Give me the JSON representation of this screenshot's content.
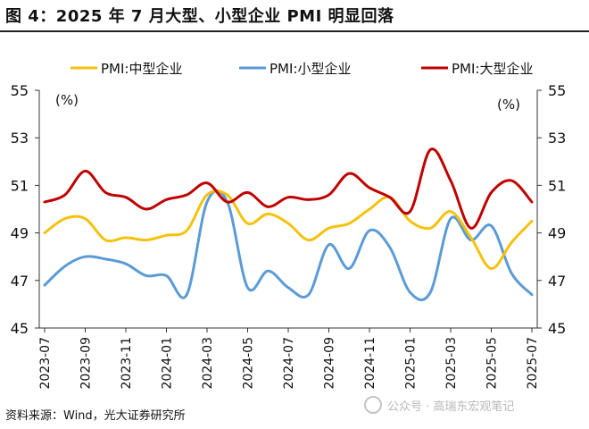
{
  "title": "图 4：2025 年 7 月大型、小型企业 PMI 明显回落",
  "source": "资料来源：Wind，光大证券研究所",
  "watermark": "公众号 · 高瑞东宏观笔记",
  "chart_data": {
    "type": "line",
    "title": "",
    "xlabel": "",
    "ylabel_left": "(%)",
    "ylabel_right": "(%)",
    "ylim": [
      45,
      55
    ],
    "yticks": [
      45,
      47,
      49,
      51,
      53,
      55
    ],
    "x": [
      "2023-07",
      "2023-08",
      "2023-09",
      "2023-10",
      "2023-11",
      "2023-12",
      "2024-01",
      "2024-02",
      "2024-03",
      "2024-04",
      "2024-05",
      "2024-06",
      "2024-07",
      "2024-08",
      "2024-09",
      "2024-10",
      "2024-11",
      "2024-12",
      "2025-01",
      "2025-02",
      "2025-03",
      "2025-04",
      "2025-05",
      "2025-06",
      "2025-07"
    ],
    "xtick_labels": [
      "2023-07",
      "2023-09",
      "2023-11",
      "2024-01",
      "2024-03",
      "2024-05",
      "2024-07",
      "2024-09",
      "2024-11",
      "2025-01",
      "2025-03",
      "2025-05",
      "2025-07"
    ],
    "legend_position": "top",
    "grid": false,
    "series": [
      {
        "name": "PMI:中型企业",
        "color": "#f4c20d",
        "values": [
          49.0,
          49.6,
          49.6,
          48.7,
          48.8,
          48.7,
          48.9,
          49.1,
          50.6,
          50.6,
          49.4,
          49.8,
          49.4,
          48.7,
          49.2,
          49.4,
          50.0,
          50.5,
          49.5,
          49.2,
          49.9,
          48.8,
          47.5,
          48.6,
          49.5
        ]
      },
      {
        "name": "PMI:小型企业",
        "color": "#5b9bd5",
        "values": [
          46.8,
          47.6,
          48.0,
          47.9,
          47.7,
          47.2,
          47.2,
          46.4,
          50.3,
          50.3,
          46.7,
          47.4,
          46.7,
          46.4,
          48.5,
          47.5,
          49.1,
          48.4,
          46.5,
          46.5,
          49.6,
          48.7,
          49.3,
          47.3,
          46.4
        ]
      },
      {
        "name": "PMI:大型企业",
        "color": "#c00000",
        "values": [
          50.3,
          50.6,
          51.6,
          50.7,
          50.5,
          50.0,
          50.4,
          50.6,
          51.1,
          50.3,
          50.7,
          50.1,
          50.5,
          50.4,
          50.6,
          51.5,
          50.9,
          50.5,
          49.9,
          52.5,
          51.2,
          49.2,
          50.7,
          51.2,
          50.3
        ]
      }
    ]
  }
}
